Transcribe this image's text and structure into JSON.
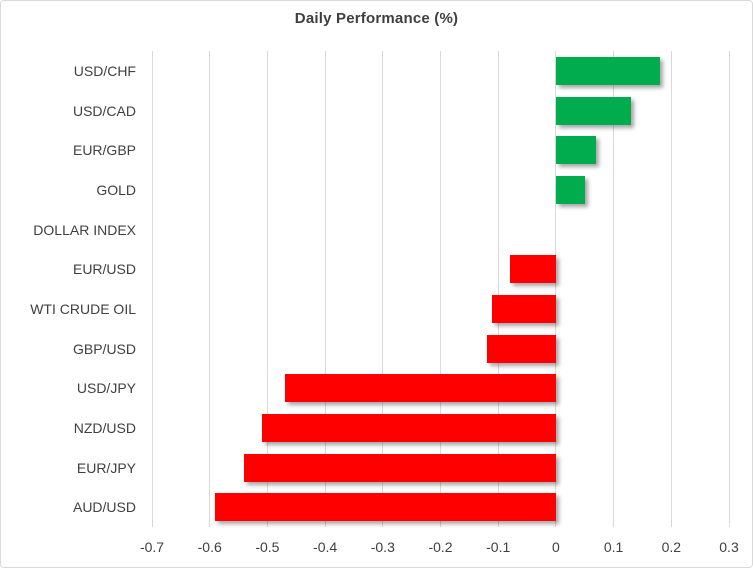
{
  "chart_data": {
    "type": "bar",
    "orientation": "horizontal",
    "title": "Daily Performance (%)",
    "categories": [
      "USD/CHF",
      "USD/CAD",
      "EUR/GBP",
      "GOLD",
      "DOLLAR INDEX",
      "EUR/USD",
      "WTI CRUDE OIL",
      "GBP/USD",
      "USD/JPY",
      "NZD/USD",
      "EUR/JPY",
      "AUD/USD"
    ],
    "values": [
      0.18,
      0.13,
      0.07,
      0.05,
      0,
      -0.08,
      -0.11,
      -0.12,
      -0.47,
      -0.51,
      -0.54,
      -0.59
    ],
    "xlabel": "",
    "ylabel": "",
    "xlim": [
      -0.7,
      0.3
    ],
    "x_ticks": [
      "-0.7",
      "-0.6",
      "-0.5",
      "-0.4",
      "-0.3",
      "-0.2",
      "-0.1",
      "0",
      "0.1",
      "0.2",
      "0.3"
    ],
    "grid": true,
    "legend": "none",
    "colors": {
      "positive": "#00ac4e",
      "negative": "#ff0000",
      "gridline": "#d9d9d9",
      "text": "#404040",
      "title_text": "#3f3f3f",
      "border": "#d9d9d9",
      "background": "#ffffff"
    }
  }
}
